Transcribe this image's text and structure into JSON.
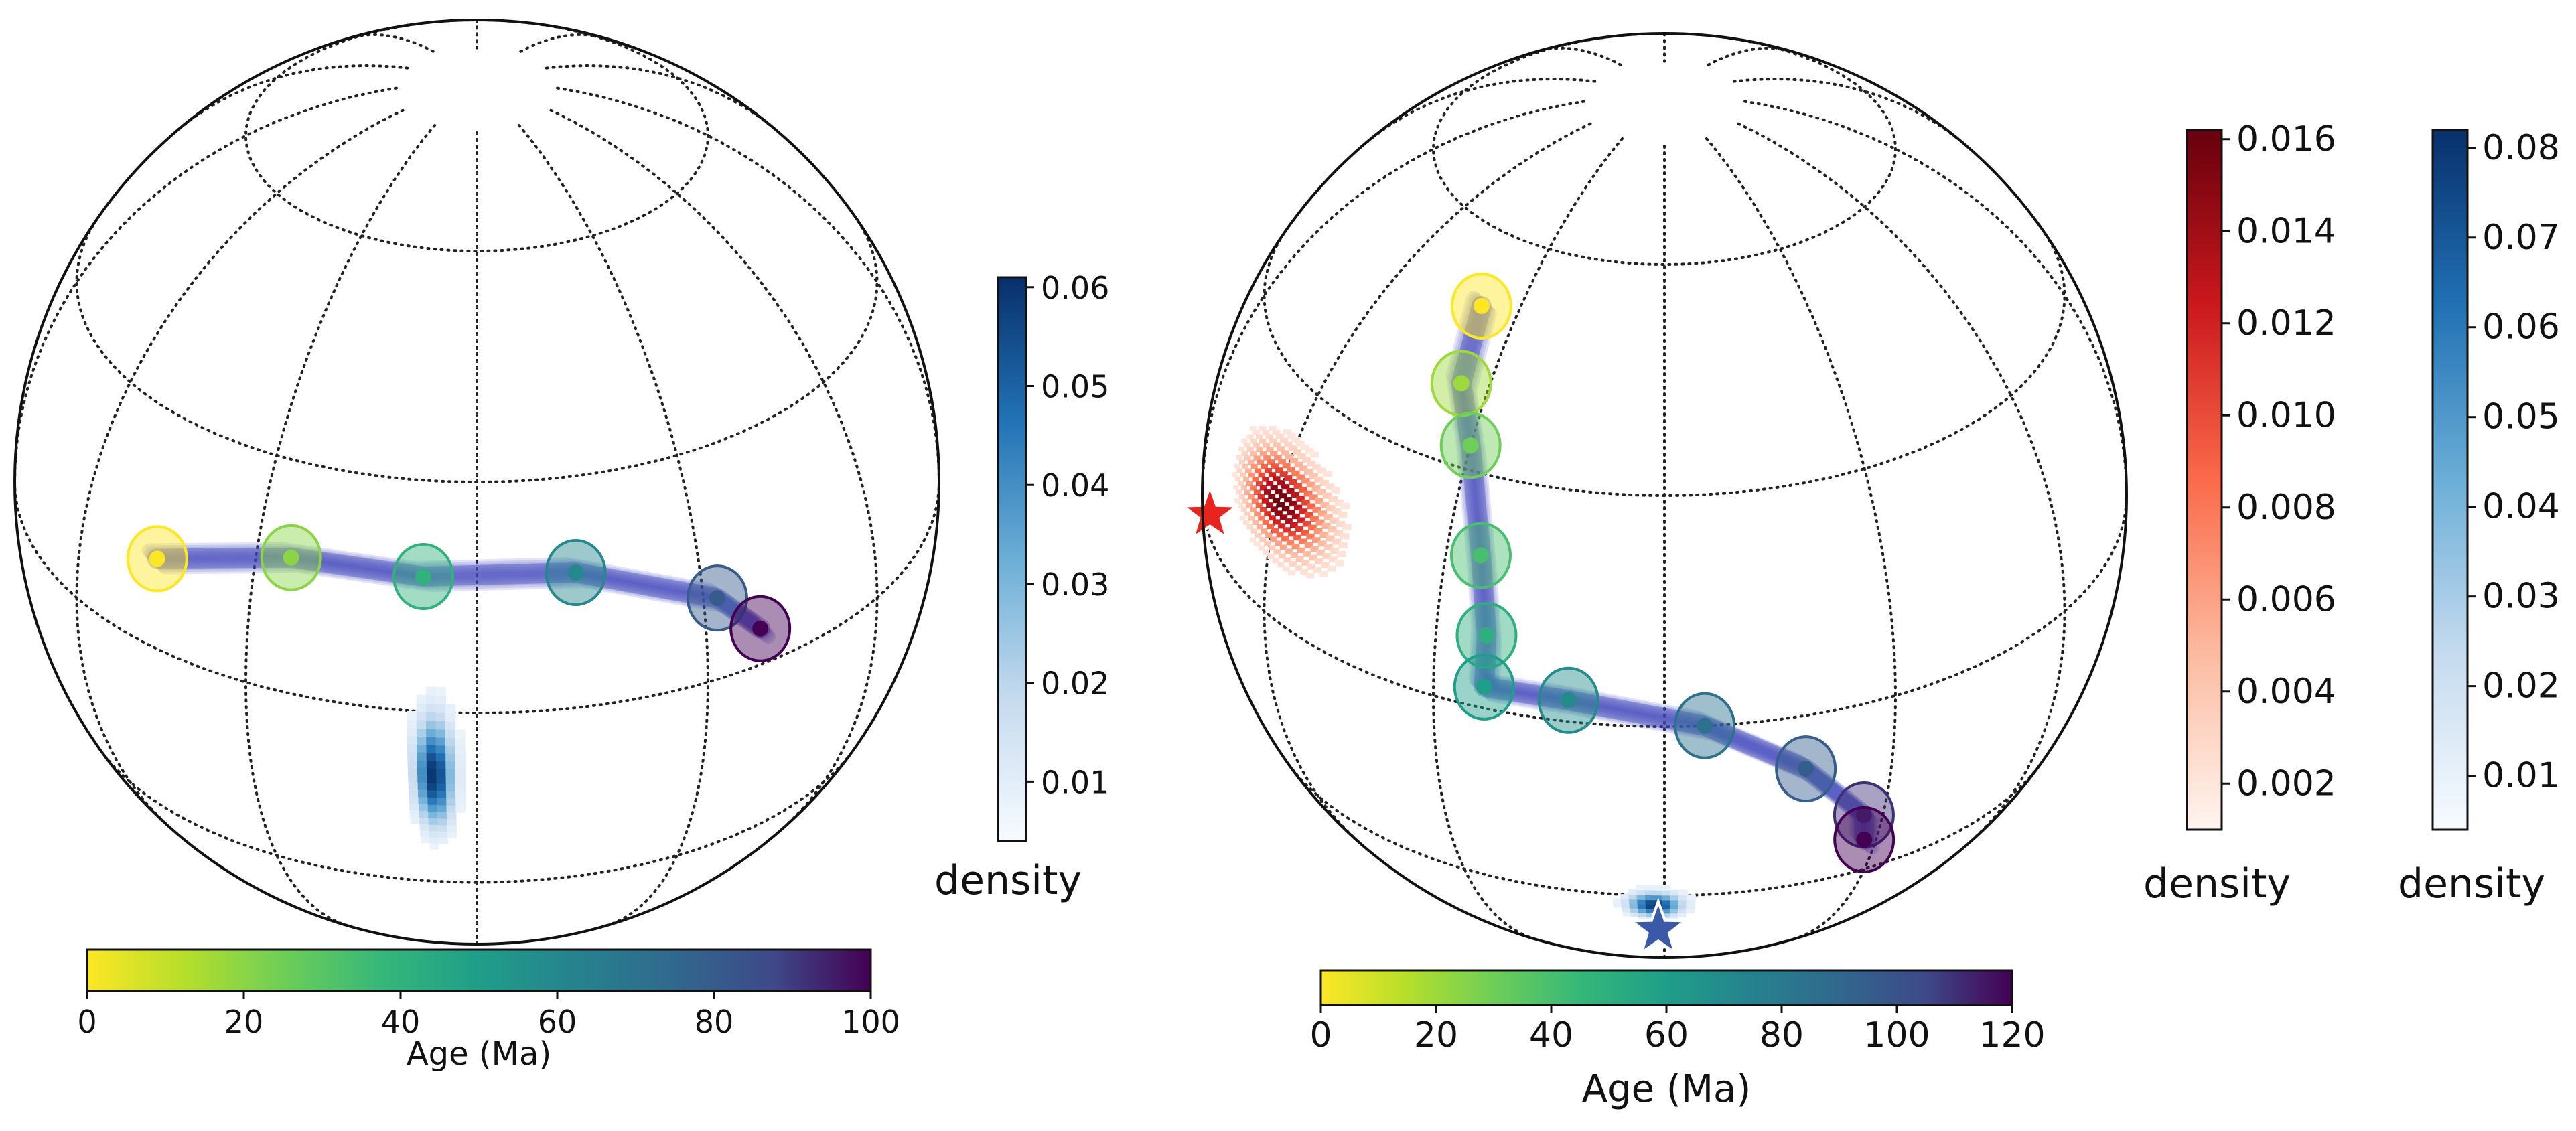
{
  "chart_data": [
    {
      "type": "scatter",
      "title": "",
      "projection": "orthographic",
      "grid": true,
      "path": {
        "label": "Age (Ma)",
        "colormap": "viridis_r",
        "range": [
          0,
          100
        ],
        "ticks": [
          "0",
          "20",
          "40",
          "60",
          "80",
          "100"
        ],
        "points": [
          {
            "age": 0,
            "lon": -45,
            "lat": 12
          },
          {
            "age": 20,
            "lon": -25,
            "lat": 18
          },
          {
            "age": 40,
            "lon": -7,
            "lat": 18
          },
          {
            "age": 60,
            "lon": 13,
            "lat": 18
          },
          {
            "age": 80,
            "lon": 32,
            "lat": 11
          },
          {
            "age": 100,
            "lon": 38,
            "lat": 5
          }
        ]
      },
      "density": [
        {
          "label": "density",
          "colormap": "Blues",
          "range": [
            0.004,
            0.061
          ],
          "ticks": [
            "0.01",
            "0.02",
            "0.03",
            "0.04",
            "0.05",
            "0.06"
          ],
          "center": {
            "lon": -6,
            "lat": -10
          },
          "spread": {
            "lon": 1.6,
            "lat": 5.5
          }
        }
      ]
    },
    {
      "type": "scatter",
      "title": "",
      "projection": "orthographic",
      "grid": true,
      "path": {
        "label": "Age (Ma)",
        "colormap": "viridis_r",
        "range": [
          0,
          120
        ],
        "ticks": [
          "0",
          "20",
          "40",
          "60",
          "80",
          "100",
          "120"
        ],
        "points": [
          {
            "age": 0,
            "lon": -38,
            "lat": 50
          },
          {
            "age": 20,
            "lon": -35,
            "lat": 40
          },
          {
            "age": 30,
            "lon": -30,
            "lat": 33
          },
          {
            "age": 40,
            "lon": -25,
            "lat": 20
          },
          {
            "age": 50,
            "lon": -23,
            "lat": 10
          },
          {
            "age": 60,
            "lon": -23,
            "lat": 3
          },
          {
            "age": 70,
            "lon": -12,
            "lat": 3
          },
          {
            "age": 85,
            "lon": 5,
            "lat": 0
          },
          {
            "age": 95,
            "lon": 18,
            "lat": -8
          },
          {
            "age": 110,
            "lon": 27,
            "lat": -18
          },
          {
            "age": 120,
            "lon": 28,
            "lat": -23
          }
        ]
      },
      "density": [
        {
          "label": "density",
          "colormap": "Reds",
          "range": [
            0.001,
            0.0162
          ],
          "ticks": [
            "0.002",
            "0.004",
            "0.006",
            "0.008",
            "0.010",
            "0.012",
            "0.014",
            "0.016"
          ],
          "center": {
            "lon": -60,
            "lat": 15
          },
          "spread": {
            "lon": 6,
            "lat": 3.5
          }
        },
        {
          "label": "density",
          "colormap": "Blues",
          "range": [
            0.004,
            0.082
          ],
          "ticks": [
            "0.01",
            "0.02",
            "0.03",
            "0.04",
            "0.05",
            "0.06",
            "0.07",
            "0.08"
          ],
          "center": {
            "lon": -2,
            "lat": -33
          },
          "spread": {
            "lon": 2.5,
            "lat": 2
          }
        }
      ],
      "stars": [
        {
          "color": "#e8241f",
          "lon": -80,
          "lat": 3
        },
        {
          "color": "#3a5aa8",
          "lon": -1,
          "lat": -40
        }
      ]
    }
  ]
}
